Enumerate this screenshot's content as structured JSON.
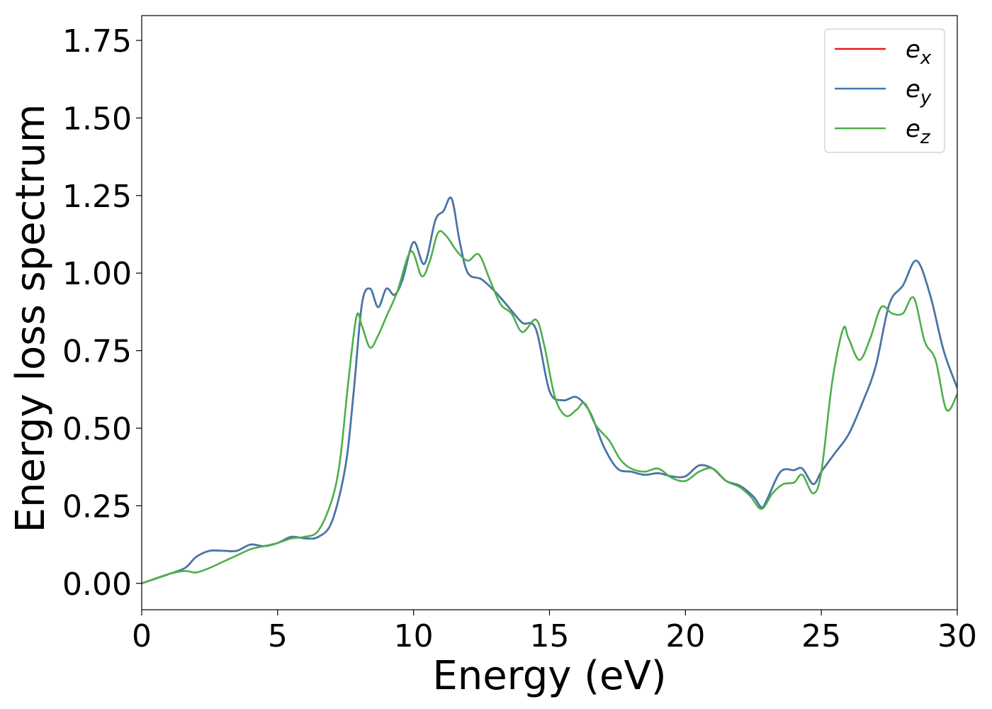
{
  "chart_data": {
    "type": "line",
    "title": "",
    "xlabel": "Energy (eV)",
    "ylabel": "Energy loss spectrum",
    "xlim": [
      0,
      30
    ],
    "ylim": [
      -0.085,
      1.83
    ],
    "xticks": [
      0,
      5,
      10,
      15,
      20,
      25,
      30
    ],
    "yticks": [
      0.0,
      0.25,
      0.5,
      0.75,
      1.0,
      1.25,
      1.5,
      1.75
    ],
    "ytick_labels": [
      "0.00",
      "0.25",
      "0.50",
      "0.75",
      "1.00",
      "1.25",
      "1.50",
      "1.75"
    ],
    "grid": false,
    "legend": "top-right",
    "series": [
      {
        "name": "e",
        "subscript": "x",
        "color": "#e41a1c",
        "x": [
          0,
          1,
          1.6,
          2,
          2.5,
          3,
          3.5,
          4,
          4.5,
          5,
          5.5,
          6,
          6.5,
          7,
          7.5,
          7.8,
          8.1,
          8.4,
          8.7,
          9,
          9.3,
          9.6,
          10,
          10.4,
          10.8,
          11.1,
          11.4,
          11.7,
          12,
          12.5,
          13,
          13.5,
          14,
          14.5,
          15,
          15.5,
          16,
          16.5,
          17,
          17.5,
          18,
          18.5,
          19,
          19.5,
          20,
          20.5,
          21,
          21.5,
          22,
          22.5,
          22.8,
          23,
          23.5,
          24,
          24.3,
          24.7,
          25,
          25.5,
          26,
          26.5,
          27,
          27.5,
          28,
          28.5,
          29,
          29.5,
          30
        ],
        "y": [
          0.0,
          0.03,
          0.05,
          0.085,
          0.105,
          0.105,
          0.105,
          0.125,
          0.12,
          0.13,
          0.15,
          0.145,
          0.15,
          0.2,
          0.38,
          0.62,
          0.9,
          0.95,
          0.89,
          0.95,
          0.93,
          0.98,
          1.1,
          1.03,
          1.17,
          1.2,
          1.24,
          1.1,
          1.0,
          0.98,
          0.94,
          0.89,
          0.84,
          0.82,
          0.62,
          0.59,
          0.6,
          0.55,
          0.44,
          0.37,
          0.36,
          0.35,
          0.355,
          0.345,
          0.345,
          0.38,
          0.37,
          0.33,
          0.315,
          0.28,
          0.245,
          0.27,
          0.36,
          0.365,
          0.37,
          0.32,
          0.36,
          0.42,
          0.48,
          0.58,
          0.7,
          0.9,
          0.96,
          1.04,
          0.93,
          0.75,
          0.63
        ]
      },
      {
        "name": "e",
        "subscript": "y",
        "color": "#4178ad",
        "x": [
          0,
          1,
          1.6,
          2,
          2.5,
          3,
          3.5,
          4,
          4.5,
          5,
          5.5,
          6,
          6.5,
          7,
          7.5,
          7.8,
          8.1,
          8.4,
          8.7,
          9,
          9.3,
          9.6,
          10,
          10.4,
          10.8,
          11.1,
          11.4,
          11.7,
          12,
          12.5,
          13,
          13.5,
          14,
          14.5,
          15,
          15.5,
          16,
          16.5,
          17,
          17.5,
          18,
          18.5,
          19,
          19.5,
          20,
          20.5,
          21,
          21.5,
          22,
          22.5,
          22.8,
          23,
          23.5,
          24,
          24.3,
          24.7,
          25,
          25.5,
          26,
          26.5,
          27,
          27.5,
          28,
          28.5,
          29,
          29.5,
          30
        ],
        "y": [
          0.0,
          0.03,
          0.05,
          0.085,
          0.105,
          0.105,
          0.105,
          0.125,
          0.12,
          0.13,
          0.15,
          0.145,
          0.15,
          0.2,
          0.38,
          0.62,
          0.9,
          0.95,
          0.89,
          0.95,
          0.93,
          0.98,
          1.1,
          1.03,
          1.17,
          1.2,
          1.24,
          1.1,
          1.0,
          0.98,
          0.94,
          0.89,
          0.84,
          0.82,
          0.62,
          0.59,
          0.6,
          0.55,
          0.44,
          0.37,
          0.36,
          0.35,
          0.355,
          0.345,
          0.345,
          0.38,
          0.37,
          0.33,
          0.315,
          0.28,
          0.245,
          0.27,
          0.36,
          0.365,
          0.37,
          0.32,
          0.36,
          0.42,
          0.48,
          0.58,
          0.7,
          0.9,
          0.96,
          1.04,
          0.93,
          0.75,
          0.63
        ]
      },
      {
        "name": "e",
        "subscript": "z",
        "color": "#4daf4a",
        "x": [
          0,
          1,
          1.6,
          2,
          2.5,
          3,
          3.5,
          4,
          4.5,
          5,
          5.5,
          6,
          6.5,
          7,
          7.3,
          7.6,
          7.9,
          8.1,
          8.4,
          8.7,
          9,
          9.4,
          9.9,
          10.3,
          10.6,
          10.9,
          11.2,
          11.6,
          12,
          12.4,
          12.8,
          13.2,
          13.6,
          14,
          14.5,
          14.8,
          15.2,
          15.6,
          16,
          16.3,
          16.7,
          17.2,
          17.6,
          18,
          18.5,
          19,
          19.5,
          20,
          20.5,
          21,
          21.5,
          22,
          22.4,
          22.8,
          23.2,
          23.6,
          24,
          24.3,
          24.7,
          25,
          25.4,
          25.8,
          26,
          26.4,
          26.8,
          27.2,
          27.6,
          28,
          28.4,
          28.8,
          29.2,
          29.6,
          30
        ],
        "y": [
          0.0,
          0.03,
          0.04,
          0.035,
          0.05,
          0.07,
          0.09,
          0.11,
          0.12,
          0.13,
          0.145,
          0.15,
          0.17,
          0.27,
          0.4,
          0.65,
          0.86,
          0.83,
          0.76,
          0.8,
          0.86,
          0.94,
          1.07,
          0.99,
          1.04,
          1.13,
          1.12,
          1.07,
          1.04,
          1.06,
          0.98,
          0.9,
          0.87,
          0.81,
          0.85,
          0.77,
          0.6,
          0.54,
          0.56,
          0.58,
          0.51,
          0.46,
          0.4,
          0.37,
          0.36,
          0.37,
          0.34,
          0.33,
          0.36,
          0.37,
          0.33,
          0.31,
          0.28,
          0.24,
          0.29,
          0.32,
          0.325,
          0.35,
          0.29,
          0.36,
          0.65,
          0.82,
          0.79,
          0.72,
          0.79,
          0.89,
          0.87,
          0.87,
          0.92,
          0.78,
          0.72,
          0.56,
          0.61
        ]
      }
    ]
  }
}
